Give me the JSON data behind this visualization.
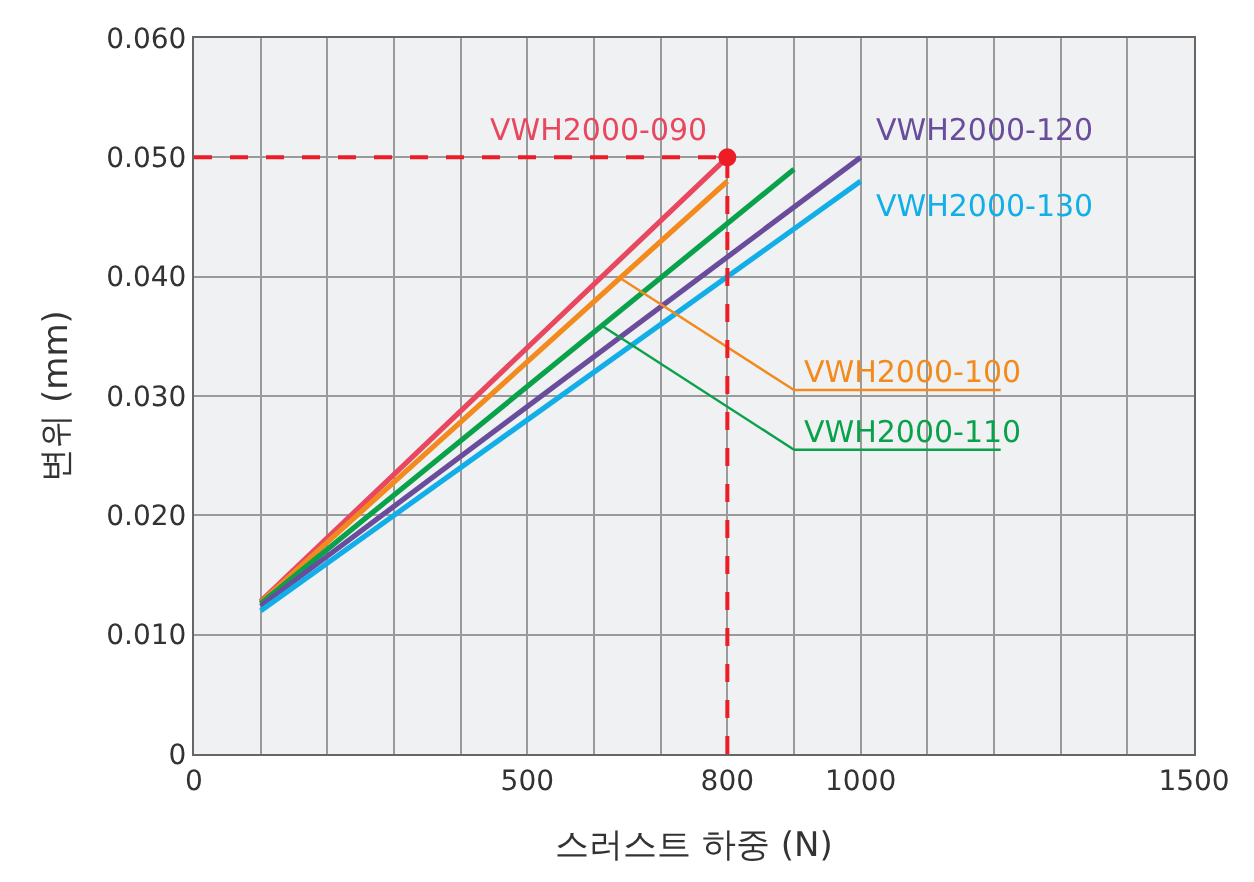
{
  "chart_data": {
    "type": "line",
    "xlabel": "스러스트 하중 (N)",
    "ylabel": "변위 (mm)",
    "xlim": [
      0,
      1500
    ],
    "xticks": [
      0,
      {
        "value": 100,
        "label": null
      },
      {
        "value": 200,
        "label": null
      },
      {
        "value": 300,
        "label": null
      },
      {
        "value": 400,
        "label": null
      },
      500,
      {
        "value": 600,
        "label": null
      },
      {
        "value": 700,
        "label": null
      },
      800,
      {
        "value": 900,
        "label": null
      },
      1000,
      {
        "value": 1100,
        "label": null
      },
      {
        "value": 1200,
        "label": null
      },
      {
        "value": 1300,
        "label": null
      },
      {
        "value": 1400,
        "label": null
      },
      1500
    ],
    "ylim": [
      0,
      0.06
    ],
    "yticks": [
      0,
      {
        "value": 0.01,
        "label": "0.010"
      },
      {
        "value": 0.02,
        "label": "0.020"
      },
      {
        "value": 0.03,
        "label": "0.030"
      },
      {
        "value": 0.04,
        "label": "0.040"
      },
      {
        "value": 0.05,
        "label": "0.050"
      },
      {
        "value": 0.06,
        "label": "0.060"
      }
    ],
    "grid": true,
    "legend": false,
    "marker": "none",
    "line_style": "solid",
    "series": [
      {
        "name": "VWH2000-090",
        "color": "#e8475f",
        "x": [
          100,
          800
        ],
        "values": [
          0.0128,
          0.05
        ]
      },
      {
        "name": "VWH2000-100",
        "color": "#f28a1e",
        "x": [
          100,
          800
        ],
        "values": [
          0.0127,
          0.048
        ]
      },
      {
        "name": "VWH2000-110",
        "color": "#0aa14b",
        "x": [
          100,
          900
        ],
        "values": [
          0.0126,
          0.049
        ]
      },
      {
        "name": "VWH2000-120",
        "color": "#6a4c9c",
        "x": [
          100,
          1000
        ],
        "values": [
          0.0124,
          0.05
        ]
      },
      {
        "name": "VWH2000-130",
        "color": "#12aee8",
        "x": [
          100,
          1000
        ],
        "values": [
          0.012,
          0.048
        ]
      },
      {
        "type": "scatter",
        "marker": "circle",
        "color": "#ee1c25",
        "x": [
          800
        ],
        "values": [
          0.05
        ]
      }
    ],
    "ref_lines": [
      {
        "axis": "x",
        "value": 800,
        "color": "#ee1c25",
        "line_style": "dashed"
      },
      {
        "axis": "y",
        "value": 0.05,
        "color": "#ee1c25",
        "line_style": "dashed"
      }
    ]
  }
}
